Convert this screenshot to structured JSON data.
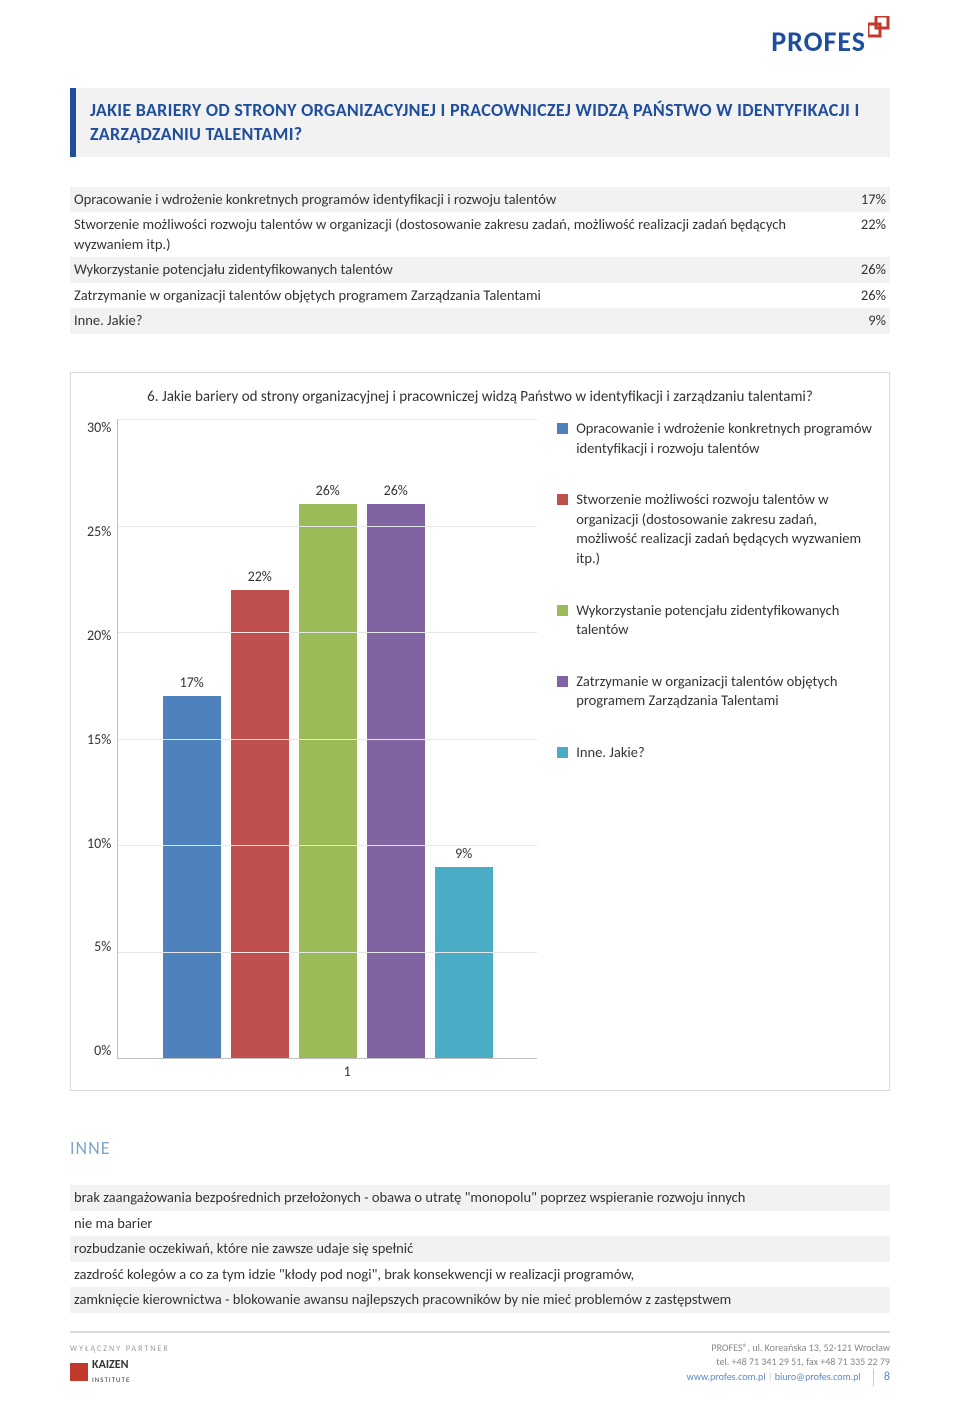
{
  "logo": {
    "text": "PROFES"
  },
  "heading": "JAKIE BARIERY OD STRONY ORGANIZACYJNEJ I PRACOWNICZEJ WIDZĄ PAŃSTWO W IDENTYFIKACJI I ZARZĄDZANIU TALENTAMI?",
  "table": {
    "rows": [
      {
        "label": "Opracowanie i wdrożenie konkretnych programów identyfikacji  i rozwoju talentów",
        "value": "17%",
        "shade": true
      },
      {
        "label": "Stworzenie możliwości rozwoju talentów w organizacji (dostosowanie zakresu zadań, możliwość realizacji zadań będących wyzwaniem itp.)",
        "value": "22%",
        "shade": false
      },
      {
        "label": "Wykorzystanie potencjału zidentyfikowanych talentów",
        "value": "26%",
        "shade": true
      },
      {
        "label": "Zatrzymanie w organizacji talentów objętych programem Zarządzania Talentami",
        "value": "26%",
        "shade": false
      },
      {
        "label": "Inne. Jakie?",
        "value": "9%",
        "shade": true
      }
    ]
  },
  "chart": {
    "title": "6. Jakie bariery od strony organizacyjnej i pracowniczej widzą Państwo w identyfikacji i zarządzaniu talentami?",
    "ymax": 30,
    "ystep": 5,
    "yticks": [
      "30%",
      "25%",
      "20%",
      "15%",
      "10%",
      "5%",
      "0%"
    ],
    "xcat": "1",
    "series": [
      {
        "name": "Opracowanie i wdrożenie konkretnych programów identyfikacji i rozwoju talentów",
        "value": 17,
        "label": "17%",
        "color": "#4f81bd"
      },
      {
        "name": "Stworzenie możliwości rozwoju talentów w organizacji (dostosowanie zakresu zadań, możliwość realizacji zadań będących wyzwaniem itp.)",
        "value": 22,
        "label": "22%",
        "color": "#c0504d"
      },
      {
        "name": "Wykorzystanie potencjału zidentyfikowanych talentów",
        "value": 26,
        "label": "26%",
        "color": "#9bbb59"
      },
      {
        "name": "Zatrzymanie w organizacji talentów objętych programem Zarządzania Talentami",
        "value": 26,
        "label": "26%",
        "color": "#8064a2"
      },
      {
        "name": "Inne. Jakie?",
        "value": 9,
        "label": "9%",
        "color": "#4bacc6"
      }
    ]
  },
  "inne": {
    "heading": "INNE",
    "rows": [
      {
        "text": "brak zaangażowania bezpośrednich przełożonych - obawa o utratę \"monopolu\" poprzez wspieranie rozwoju innych",
        "shade": true
      },
      {
        "text": "nie ma barier",
        "shade": false
      },
      {
        "text": "rozbudzanie oczekiwań, które nie zawsze udaje się spełnić",
        "shade": true
      },
      {
        "text": "zazdrość kolegów a co za tym idzie \"kłody pod nogi\", brak konsekwencji w realizacji programów,",
        "shade": false
      },
      {
        "text": "zamknięcie kierownictwa - blokowanie awansu najlepszych pracowników by nie mieć problemów z zastępstwem",
        "shade": true
      }
    ]
  },
  "footer": {
    "partner_label": "WYŁĄCZNY PARTNER",
    "kaizen": "KAIZEN",
    "kaizen_sub": "INSTITUTE",
    "line1": "PROFES®, ul. Koreańska 13, 52-121 Wrocław",
    "line2": "tel. +48 71 341 29 51, fax +48 71 335 22 79",
    "link1": "www.profes.com.pl",
    "link2": "biuro@profes.com.pl",
    "page": "8"
  }
}
